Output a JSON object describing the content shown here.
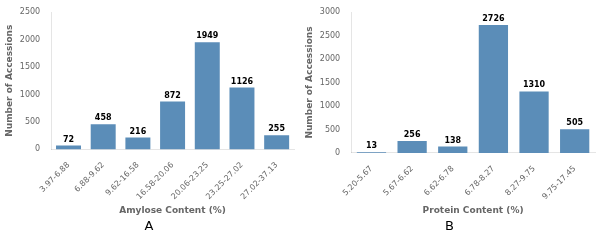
{
  "chart_data": [
    {
      "type": "bar",
      "title": "A",
      "categories": [
        "3.97-6.88",
        "6.88-9.62",
        "9.62-16.58",
        "16.58-20.06",
        "20.06-23.25",
        "23.25-27.02",
        "27.02-37.13"
      ],
      "values": [
        72,
        458,
        216,
        872,
        1949,
        1126,
        255
      ],
      "color": "#5b8db8",
      "xlabel": "Amylose Content (%)",
      "ylabel": "Number of Accessions",
      "ylim": [
        0,
        2500
      ],
      "yticks": [
        0,
        500,
        1000,
        1500,
        2000,
        2500
      ],
      "data_labels": true,
      "grid": false
    },
    {
      "type": "bar",
      "title": "B",
      "categories": [
        "5.20-5.67",
        "5.67-6.62",
        "6.62-6.78",
        "6.78-8.27",
        "8.27-9.75",
        "9.75-17.45"
      ],
      "values": [
        13,
        256,
        138,
        2726,
        1310,
        505
      ],
      "color": "#5b8db8",
      "xlabel": "Protein Content (%)",
      "ylabel": "Number of Accessions",
      "ylim": [
        0,
        3000
      ],
      "yticks": [
        0,
        500,
        1000,
        1500,
        2000,
        2500,
        3000
      ],
      "data_labels": true,
      "grid": false
    }
  ]
}
